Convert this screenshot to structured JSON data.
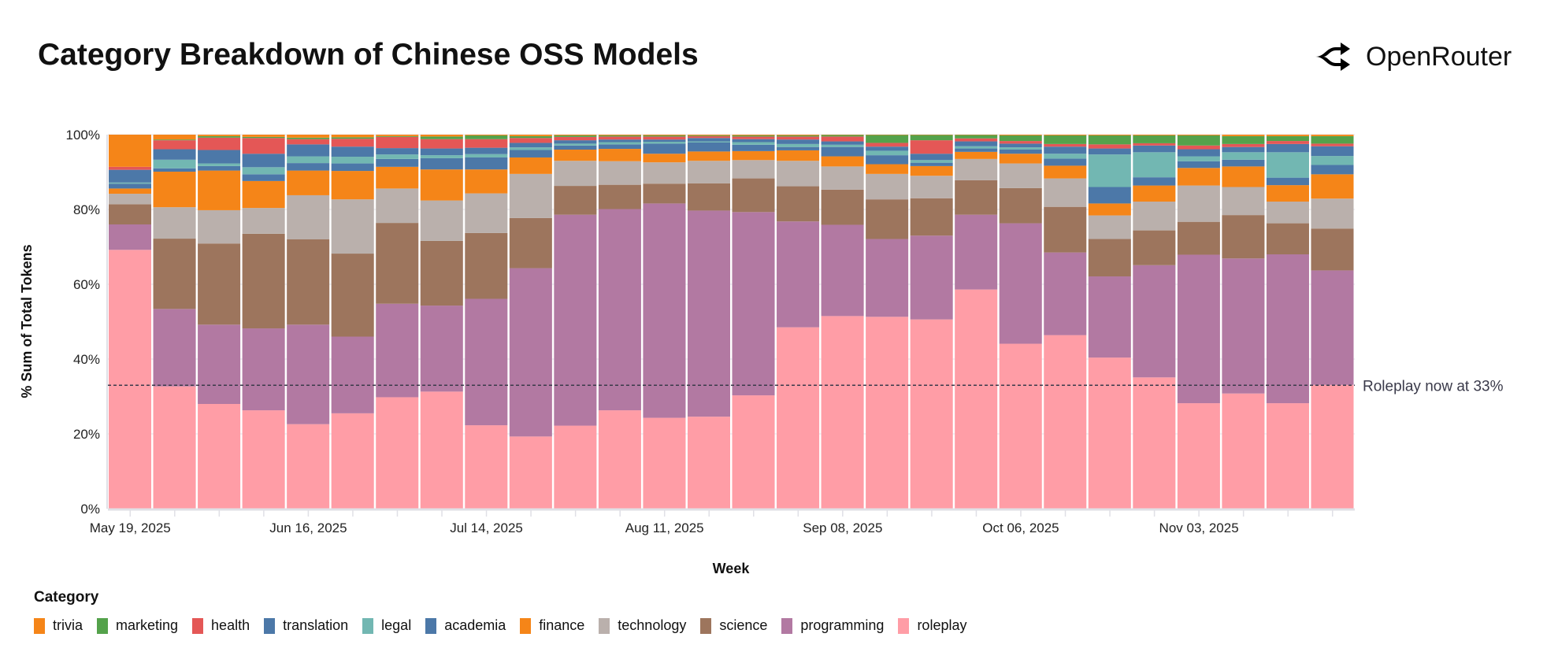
{
  "title": "Category Breakdown of Chinese OSS Models",
  "logo": {
    "text": "OpenRouter",
    "icon": "openrouter-arrows-icon"
  },
  "chart_data": {
    "type": "bar",
    "stacked": "normalize",
    "xlabel": "Week",
    "ylabel": "% Sum of Total Tokens",
    "ylim": [
      0,
      100
    ],
    "y_ticks": [
      "0%",
      "20%",
      "40%",
      "60%",
      "80%",
      "100%"
    ],
    "grid": true,
    "x_tick_labels": [
      "May 19, 2025",
      "Jun 16, 2025",
      "Jul 14, 2025",
      "Aug 11, 2025",
      "Sep 08, 2025",
      "Oct 06, 2025",
      "Nov 03, 2025"
    ],
    "categories": [
      "2025-05-19",
      "2025-05-26",
      "2025-06-02",
      "2025-06-09",
      "2025-06-16",
      "2025-06-23",
      "2025-06-30",
      "2025-07-07",
      "2025-07-14",
      "2025-07-21",
      "2025-07-28",
      "2025-08-04",
      "2025-08-11",
      "2025-08-18",
      "2025-08-25",
      "2025-09-01",
      "2025-09-08",
      "2025-09-15",
      "2025-09-22",
      "2025-09-29",
      "2025-10-06",
      "2025-10-13",
      "2025-10-20",
      "2025-10-27",
      "2025-11-03",
      "2025-11-10",
      "2025-11-17",
      "2025-11-24"
    ],
    "legend_title": "Category",
    "legend_placement": "bottom-left",
    "series": [
      {
        "name": "roleplay",
        "color": "#ff9da6",
        "values": [
          69.2,
          32.7,
          28.0,
          26.3,
          22.6,
          25.5,
          29.8,
          31.3,
          22.3,
          19.3,
          22.2,
          26.3,
          24.3,
          24.6,
          30.3,
          48.5,
          51.5,
          51.3,
          50.6,
          58.6,
          44.1,
          46.4,
          40.4,
          35.1,
          28.2,
          30.8,
          28.2,
          33.1
        ]
      },
      {
        "name": "programming",
        "color": "#b279a2",
        "values": [
          6.8,
          20.7,
          21.2,
          21.9,
          26.6,
          20.5,
          25.0,
          23.0,
          33.8,
          45.0,
          56.4,
          53.8,
          57.3,
          55.1,
          49.0,
          28.3,
          24.4,
          20.8,
          22.4,
          20.0,
          32.2,
          22.1,
          21.7,
          30.0,
          39.7,
          36.1,
          39.8,
          30.6
        ]
      },
      {
        "name": "science",
        "color": "#9d755d",
        "values": [
          5.4,
          18.8,
          21.7,
          25.3,
          22.8,
          22.2,
          21.6,
          17.3,
          17.6,
          13.4,
          7.7,
          6.5,
          5.3,
          7.3,
          9.0,
          9.4,
          9.4,
          10.6,
          10.0,
          9.2,
          9.4,
          12.2,
          10.0,
          9.3,
          8.8,
          11.6,
          8.3,
          11.2
        ]
      },
      {
        "name": "technology",
        "color": "#bab0ac",
        "values": [
          2.8,
          8.4,
          8.9,
          6.9,
          11.8,
          14.5,
          9.2,
          10.8,
          10.6,
          11.8,
          6.7,
          6.3,
          5.7,
          6.0,
          4.9,
          6.8,
          6.2,
          6.8,
          6.0,
          5.7,
          6.6,
          7.6,
          6.3,
          7.7,
          9.7,
          7.5,
          5.8,
          8.0
        ]
      },
      {
        "name": "finance",
        "color": "#f58518",
        "values": [
          1.4,
          9.5,
          10.6,
          7.2,
          6.6,
          7.6,
          5.8,
          8.3,
          6.4,
          4.4,
          3.0,
          3.3,
          2.3,
          2.5,
          2.4,
          2.8,
          2.7,
          2.6,
          2.6,
          1.9,
          2.6,
          3.4,
          3.2,
          4.3,
          4.7,
          5.5,
          4.4,
          6.5
        ]
      },
      {
        "name": "academia",
        "color": "#4c78a8",
        "values": [
          1.3,
          0.9,
          1.2,
          1.8,
          2.0,
          2.0,
          2.1,
          3.0,
          3.2,
          2.0,
          1.1,
          1.2,
          2.7,
          2.4,
          1.7,
          0.9,
          2.5,
          2.4,
          0.9,
          0.9,
          1.1,
          1.9,
          4.4,
          2.2,
          1.8,
          1.8,
          2.0,
          2.5
        ]
      },
      {
        "name": "legal",
        "color": "#72b7b2",
        "values": [
          0.3,
          2.3,
          0.7,
          1.9,
          1.8,
          1.8,
          1.2,
          0.8,
          0.9,
          0.7,
          0.5,
          0.6,
          0.5,
          0.3,
          0.7,
          0.8,
          0.6,
          1.2,
          0.7,
          0.6,
          0.6,
          1.3,
          8.7,
          6.7,
          1.3,
          2.0,
          6.8,
          2.4
        ]
      },
      {
        "name": "translation",
        "color": "#4c78a8",
        "values": [
          3.4,
          2.8,
          3.6,
          3.6,
          3.2,
          2.7,
          1.7,
          1.8,
          1.7,
          1.2,
          0.9,
          0.7,
          0.6,
          0.9,
          0.8,
          1.2,
          0.9,
          1.1,
          1.7,
          1.3,
          1.0,
          1.9,
          1.6,
          1.8,
          1.9,
          1.4,
          2.2,
          2.6
        ]
      },
      {
        "name": "health",
        "color": "#e45756",
        "values": [
          0.8,
          2.4,
          3.3,
          4.2,
          1.4,
          2.1,
          3.0,
          2.5,
          2.3,
          1.3,
          0.9,
          0.8,
          0.8,
          0.5,
          0.7,
          0.8,
          1.3,
          1.0,
          3.6,
          0.8,
          0.7,
          0.7,
          1.1,
          0.6,
          1.0,
          0.8,
          0.8,
          0.7
        ]
      },
      {
        "name": "marketing",
        "color": "#54a24b",
        "values": [
          0.0,
          0.2,
          0.4,
          0.3,
          0.4,
          0.4,
          0.2,
          0.7,
          1.0,
          0.5,
          0.4,
          0.3,
          0.3,
          0.2,
          0.3,
          0.3,
          0.4,
          2.1,
          1.4,
          0.9,
          1.5,
          2.3,
          2.4,
          2.1,
          2.7,
          2.1,
          1.3,
          2.0
        ]
      },
      {
        "name": "trivia",
        "color": "#f58518",
        "values": [
          8.6,
          1.3,
          0.4,
          0.6,
          0.8,
          0.7,
          0.4,
          0.5,
          0.2,
          0.4,
          0.2,
          0.2,
          0.2,
          0.2,
          0.2,
          0.2,
          0.1,
          0.1,
          0.1,
          0.1,
          0.2,
          0.2,
          0.2,
          0.2,
          0.2,
          0.4,
          0.4,
          0.4
        ]
      }
    ],
    "legend_order": [
      "trivia",
      "marketing",
      "health",
      "translation",
      "legal",
      "academia",
      "finance",
      "technology",
      "science",
      "programming",
      "roleplay"
    ],
    "annotation": {
      "text": "Roleplay now at 33%",
      "y": 33,
      "line": "dashed",
      "color": "#3a3a4a"
    }
  }
}
